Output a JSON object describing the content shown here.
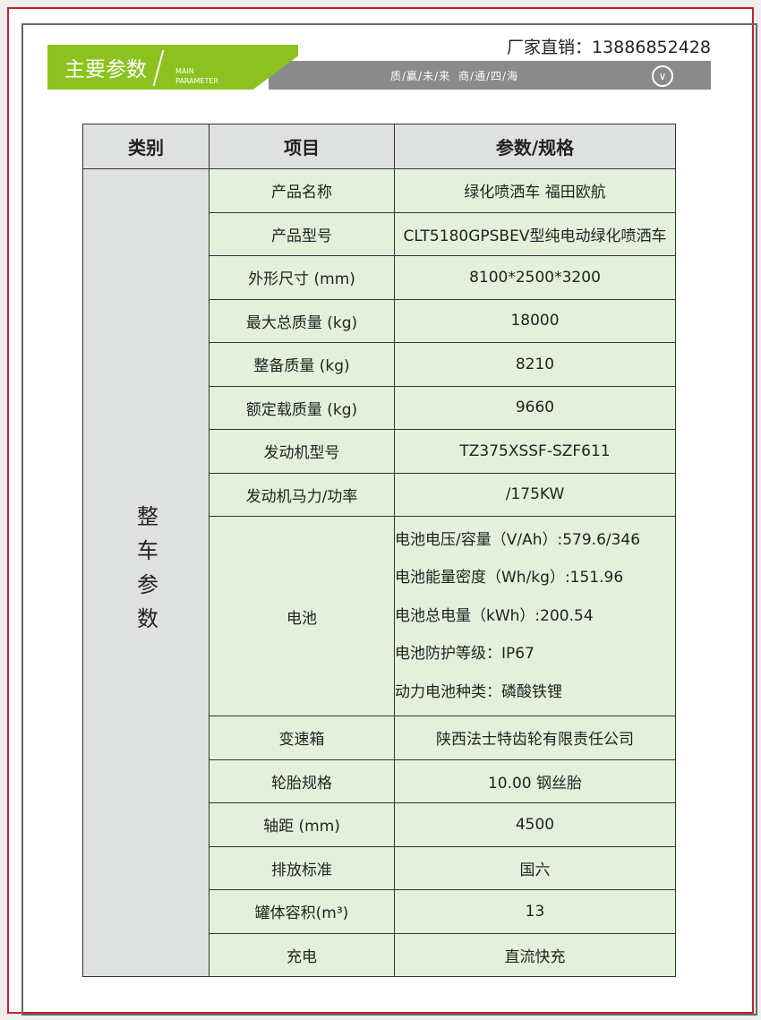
{
  "header": {
    "title": "主要参数",
    "subtitle_line1": "MAIN",
    "subtitle_line2": "PARAMETER",
    "phone": "厂家直销：13886852428",
    "slogan": "质/赢/未/来 商/通/四/海",
    "icon": "chevron-down-circle-icon"
  },
  "colors": {
    "green": "#8cc21f",
    "gray": "#8a8a8a",
    "border": "#c8202a",
    "cell": "#e3f1dc"
  },
  "table": {
    "headers": [
      "类别",
      "项目",
      "参数/规格"
    ],
    "category": "整车参数",
    "rows": [
      {
        "item": "产品名称",
        "value": "绿化喷洒车 福田欧航"
      },
      {
        "item": "产品型号",
        "value": "CLT5180GPSBEV型纯电动绿化喷洒车"
      },
      {
        "item": "外形尺寸 (mm)",
        "value": "8100*2500*3200"
      },
      {
        "item": "最大总质量 (kg)",
        "value": "18000"
      },
      {
        "item": "整备质量 (kg)",
        "value": "8210"
      },
      {
        "item": "额定载质量 (kg)",
        "value": "9660"
      },
      {
        "item": "发动机型号",
        "value": "TZ375XSSF-SZF611"
      },
      {
        "item": "发动机马力/功率",
        "value": "/175KW"
      }
    ],
    "battery": {
      "item": "电池",
      "lines": [
        "电池电压/容量（V/Ah）:579.6/346",
        "电池能量密度（Wh/kg）:151.96",
        "电池总电量（kWh）:200.54",
        "电池防护等级：IP67",
        "动力电池种类：磷酸铁锂"
      ]
    },
    "rows2": [
      {
        "item": "变速箱",
        "value": "陕西法士特齿轮有限责任公司"
      },
      {
        "item": "轮胎规格",
        "value": "10.00 钢丝胎"
      },
      {
        "item": "轴距 (mm)",
        "value": "4500"
      },
      {
        "item": "排放标准",
        "value": "国六"
      },
      {
        "item": "罐体容积(m³)",
        "value": "13"
      },
      {
        "item": "充电",
        "value": "直流快充"
      }
    ]
  }
}
